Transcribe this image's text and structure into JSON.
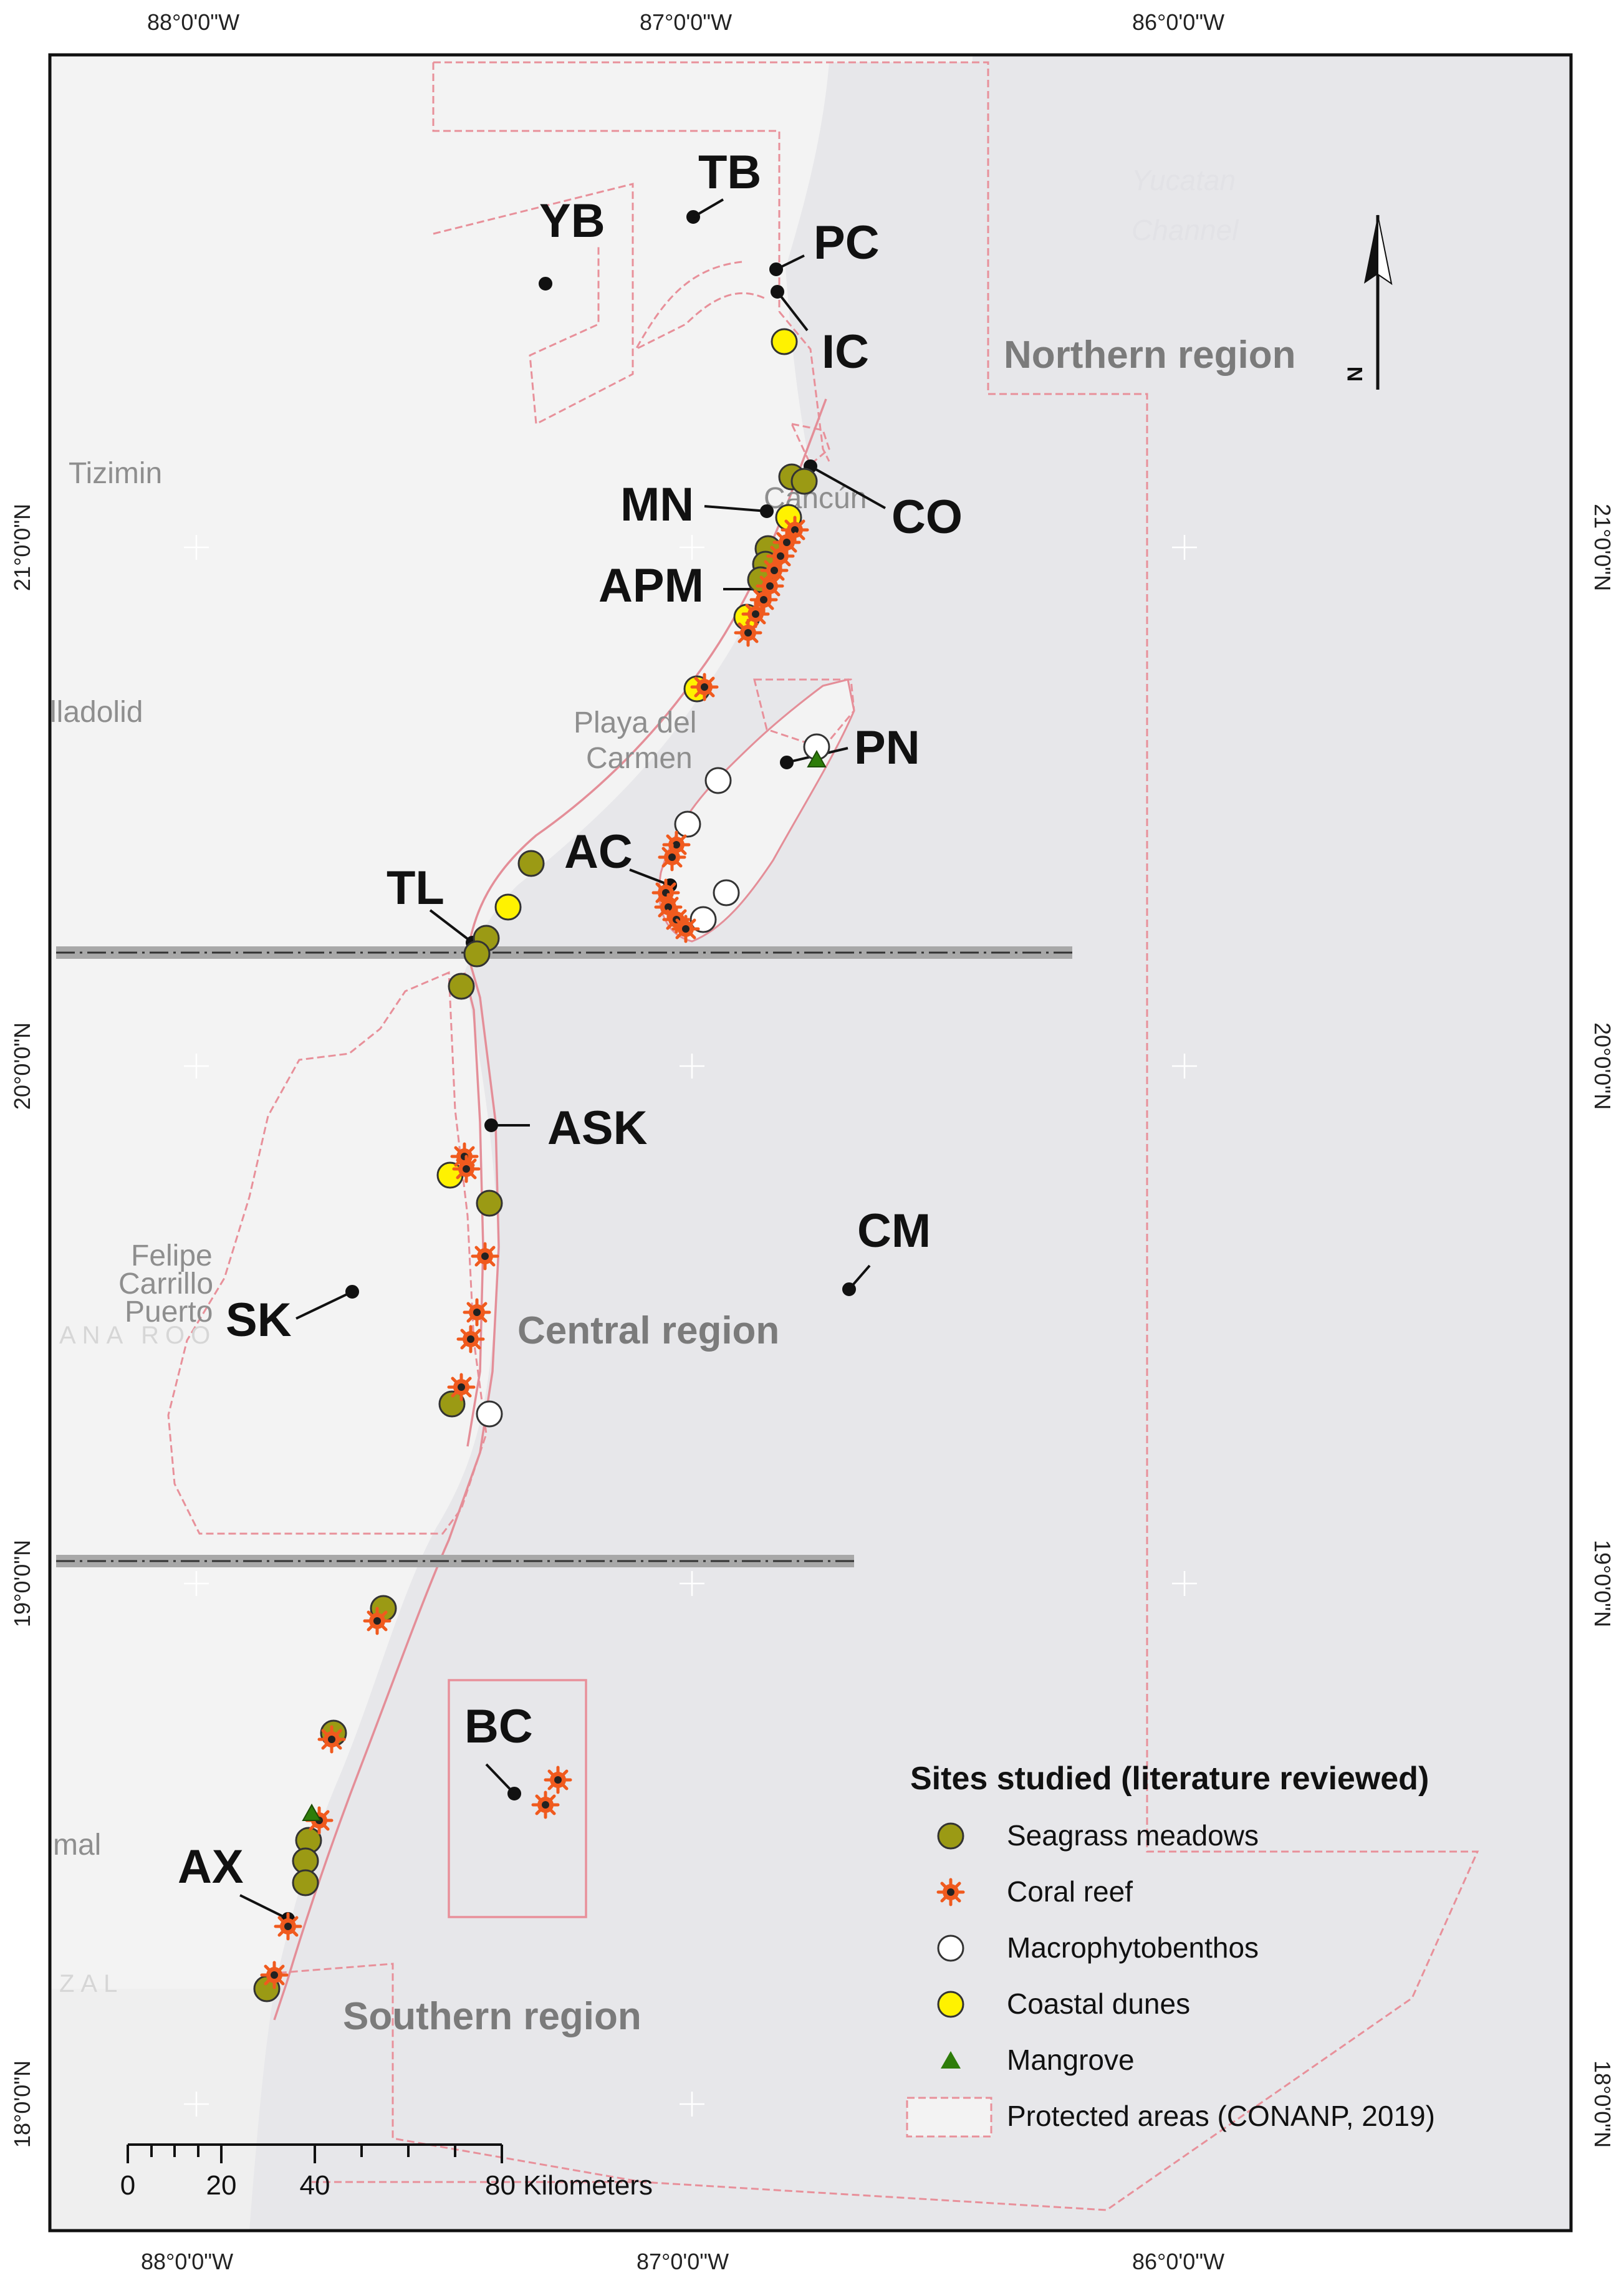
{
  "colors": {
    "seagrass": "#9b9a14",
    "coral": "#f05a1e",
    "macrophyto": "#ffffff",
    "dunes": "#fff200",
    "mangrove": "#2e7d0a",
    "protected": "#e8909a",
    "sea": "#e7e7ea",
    "land": "#f3f3f3"
  },
  "axes": {
    "top_lon": [
      "88°0'0\"W",
      "87°0'0\"W",
      "86°0'0\"W"
    ],
    "bottom_lon": [
      "88°0'0\"W",
      "87°0'0\"W",
      "86°0'0\"W"
    ],
    "left_lat": [
      "21°0'0\"N",
      "20°0'0\"N",
      "19°0'0\"N",
      "18°0'0\"N"
    ],
    "right_lat": [
      "21°0'0\"N",
      "20°0'0\"N",
      "19°0'0\"N",
      "18°0'0\"N"
    ]
  },
  "sites": {
    "YB": "YB",
    "TB": "TB",
    "PC": "PC",
    "IC": "IC",
    "CO": "CO",
    "MN": "MN",
    "APM": "APM",
    "PN": "PN",
    "AC": "AC",
    "TL": "TL",
    "ASK": "ASK",
    "CM": "CM",
    "SK": "SK",
    "BC": "BC",
    "AX": "AX"
  },
  "regions": {
    "northern": "Northern region",
    "central": "Central region",
    "southern": "Southern region"
  },
  "towns": {
    "tizimin": "Tizimin",
    "valladolid": "lladolid",
    "cancun": "Cancún",
    "playa1": "Playa del",
    "playa2": "Carmen",
    "felipe1": "Felipe",
    "felipe2": "Carrillo",
    "felipe3": "Puerto",
    "chetumal": "mal",
    "state_fragment": "ANA ROO",
    "belize_fragment": "ZAL"
  },
  "water": {
    "line1": "Yucatan",
    "line2": "Channel"
  },
  "north_arrow": "N",
  "legend": {
    "title": "Sites studied (literature reviewed)",
    "items": [
      {
        "label": "Seagrass meadows",
        "symbol": "seagrass"
      },
      {
        "label": "Coral reef",
        "symbol": "coral"
      },
      {
        "label": "Macrophytobenthos",
        "symbol": "macrophyto"
      },
      {
        "label": "Coastal dunes",
        "symbol": "dunes"
      },
      {
        "label": "Mangrove",
        "symbol": "mangrove"
      },
      {
        "label": "Protected areas (CONANP, 2019)",
        "symbol": "protected"
      }
    ]
  },
  "scale": {
    "ticks": [
      "0",
      "20",
      "40"
    ],
    "end": "80 Kilometers"
  }
}
